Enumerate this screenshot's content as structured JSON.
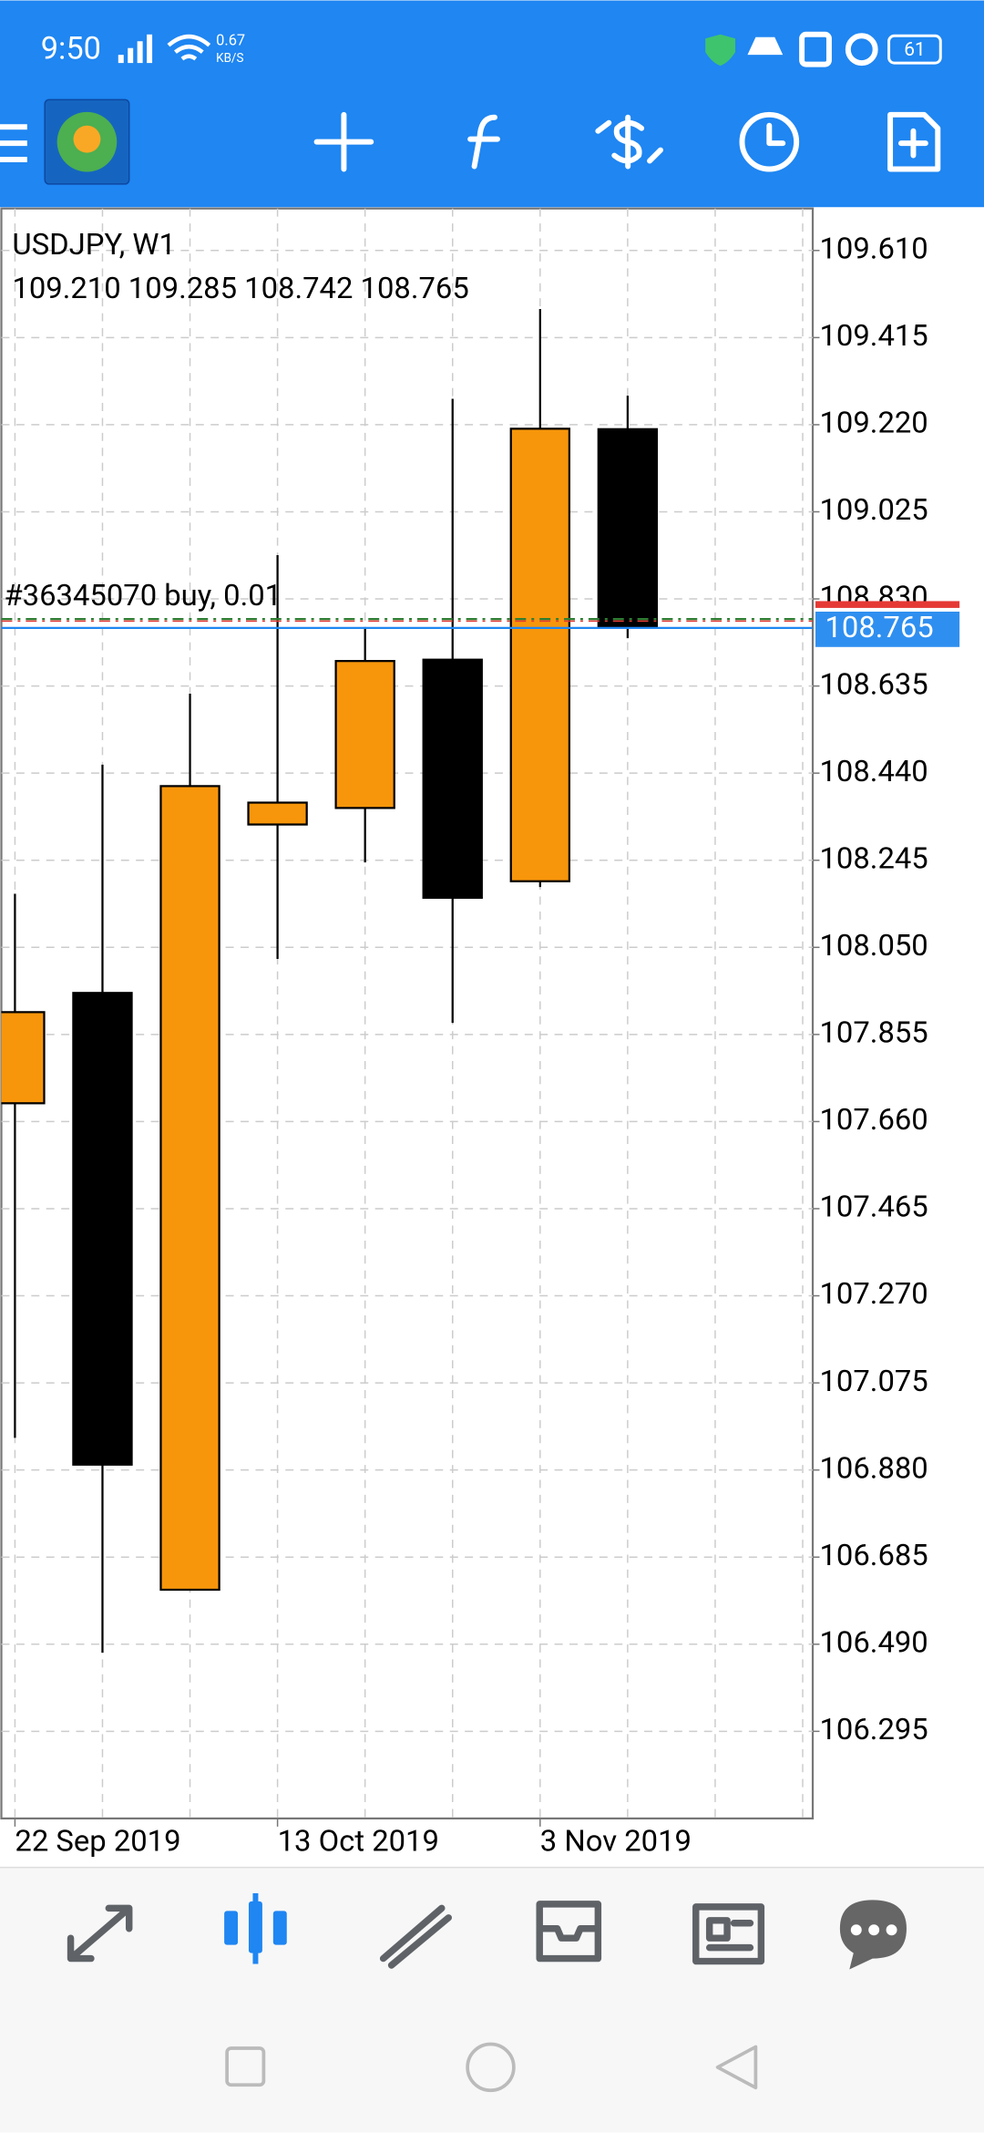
{
  "status": {
    "time": "9:50",
    "net_speed": "0.67",
    "net_unit": "KB/S",
    "battery": "61"
  },
  "chart_data": {
    "type": "candlestick",
    "title": "USDJPY, W1",
    "subtitle": "109.210 109.285 108.742 108.765",
    "categories": [
      "22 Sep 2019",
      null,
      null,
      "13 Oct 2019",
      null,
      null,
      "3 Nov 2019",
      null
    ],
    "open": [
      107.701,
      107.948,
      106.612,
      108.325,
      108.362,
      108.694,
      108.198,
      109.21
    ],
    "high": [
      108.17,
      108.459,
      108.618,
      108.928,
      108.767,
      109.278,
      109.479,
      109.285
    ],
    "low": [
      106.952,
      106.471,
      106.612,
      108.024,
      108.24,
      107.881,
      108.185,
      108.742
    ],
    "close": [
      107.905,
      106.892,
      108.411,
      108.374,
      108.691,
      108.161,
      109.211,
      108.765
    ],
    "up_color": "#f7960b",
    "down_color": "#000000",
    "ylim": [
      106.1,
      109.704
    ],
    "yticks": [
      {
        "value": 109.61,
        "label": "109.610"
      },
      {
        "value": 109.415,
        "label": "109.415"
      },
      {
        "value": 109.22,
        "label": "109.220"
      },
      {
        "value": 109.025,
        "label": "109.025"
      },
      {
        "value": 108.83,
        "label": "108.830"
      },
      {
        "value": 108.635,
        "label": "108.635"
      },
      {
        "value": 108.44,
        "label": "108.440"
      },
      {
        "value": 108.245,
        "label": "108.245"
      },
      {
        "value": 108.05,
        "label": "108.050"
      },
      {
        "value": 107.855,
        "label": "107.855"
      },
      {
        "value": 107.66,
        "label": "107.660"
      },
      {
        "value": 107.465,
        "label": "107.465"
      },
      {
        "value": 107.27,
        "label": "107.270"
      },
      {
        "value": 107.075,
        "label": "107.075"
      },
      {
        "value": 106.88,
        "label": "106.880"
      },
      {
        "value": 106.685,
        "label": "106.685"
      },
      {
        "value": 106.49,
        "label": "106.490"
      },
      {
        "value": 106.295,
        "label": "106.295"
      }
    ],
    "grid": true,
    "order": {
      "label": "#36345070 buy, 0.01",
      "price": 108.785
    },
    "ask_price": 108.819,
    "current_price": {
      "value": 108.765,
      "label": "108.765"
    }
  }
}
